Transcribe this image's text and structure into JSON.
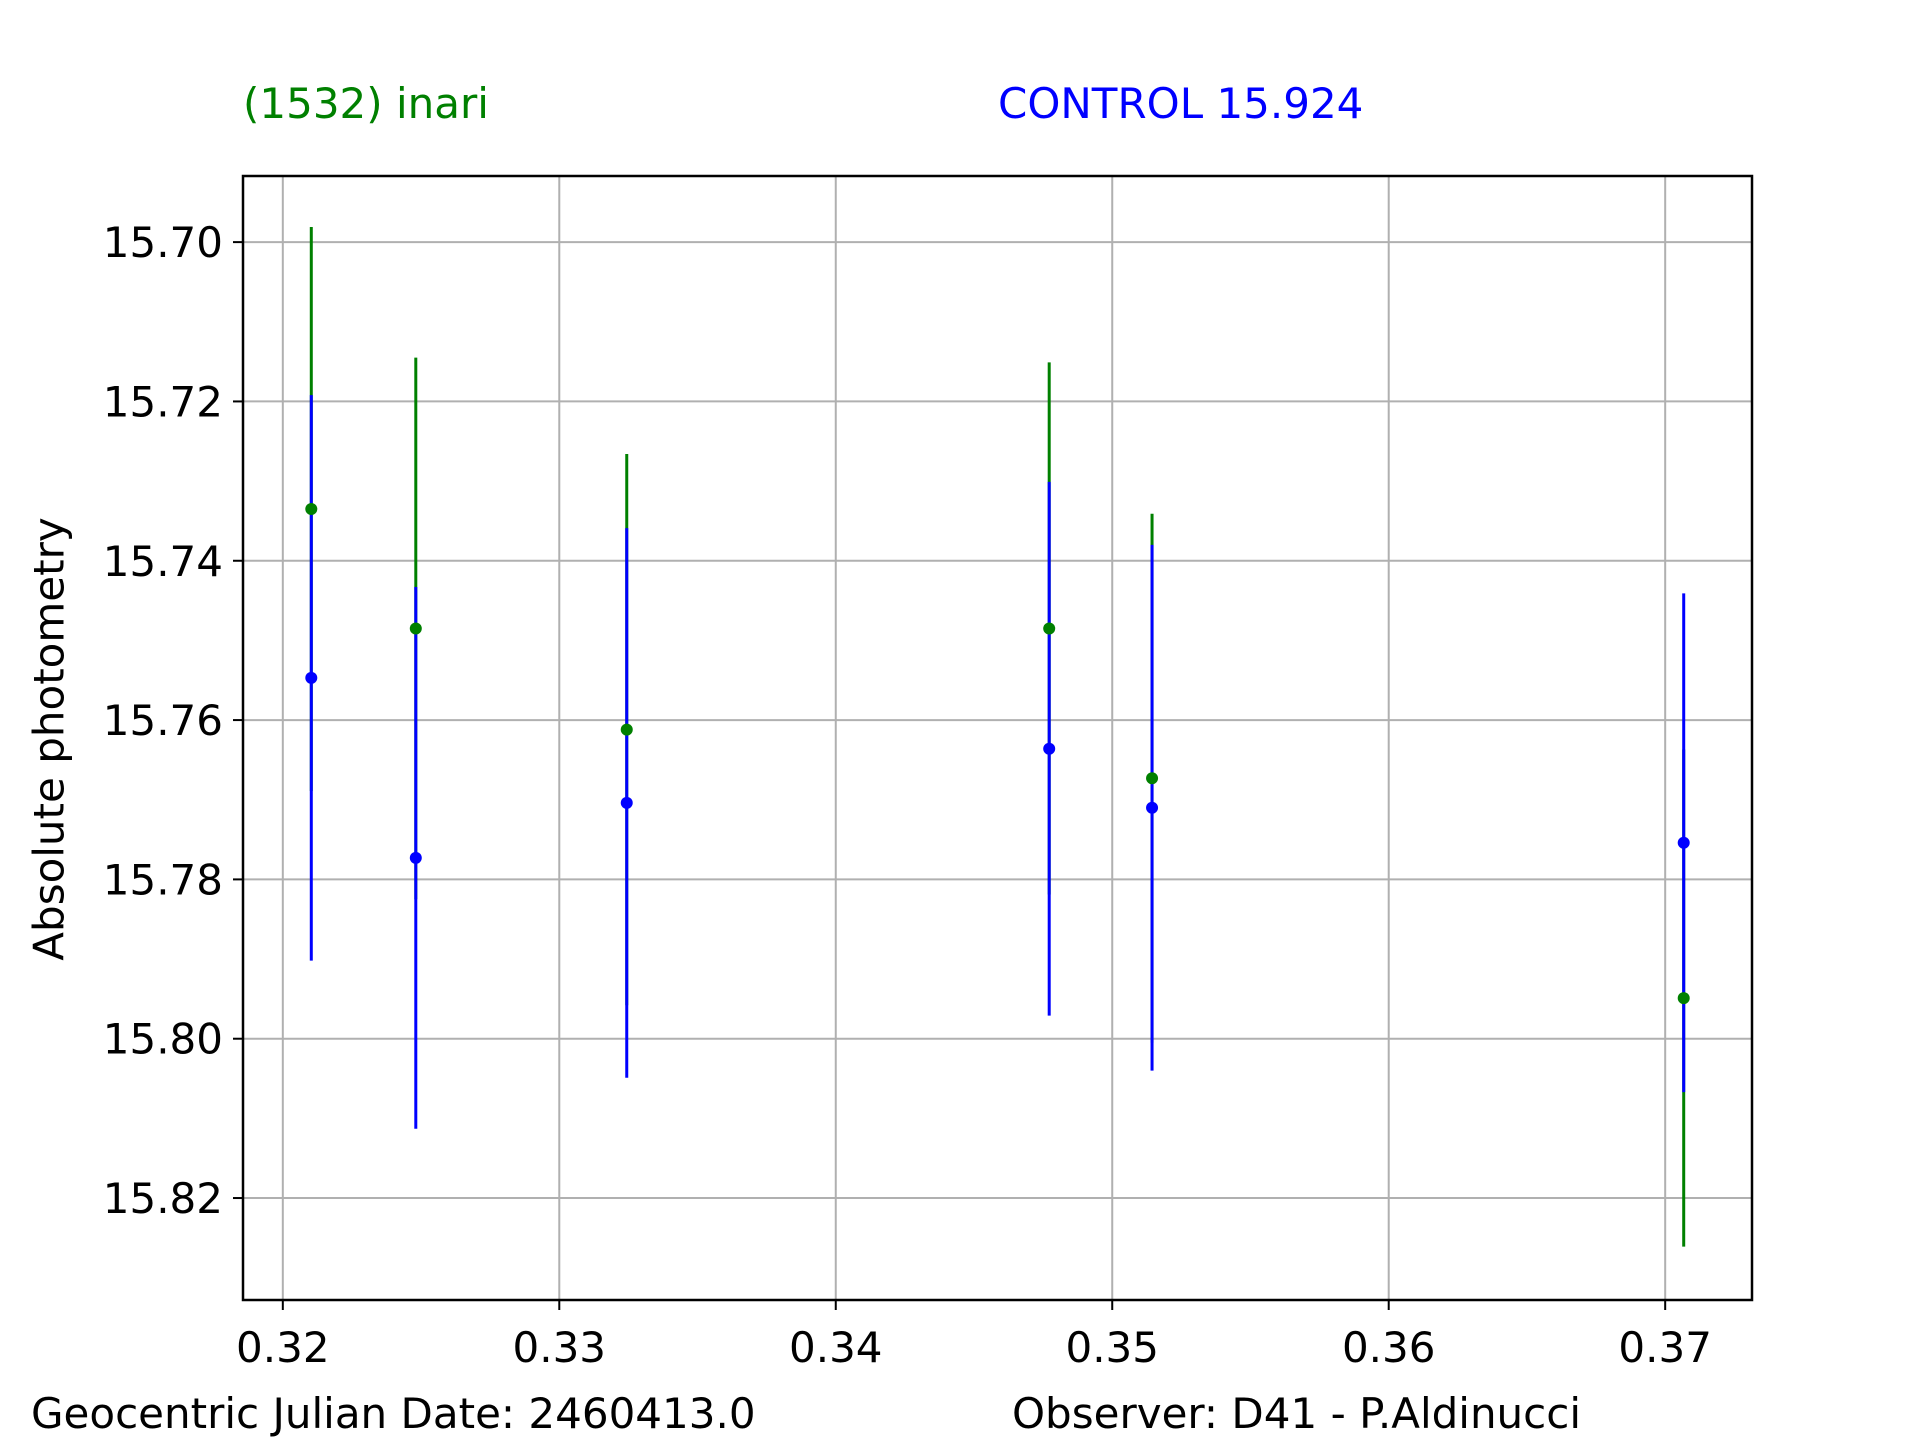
{
  "chart_data": {
    "type": "errorbar",
    "ylabel": "Absolute photometry",
    "footer_left": "Geocentric Julian Date: 2460413.0",
    "footer_right": "Observer: D41 - P.Aldinucci",
    "x": [
      0.32103,
      0.32481,
      0.33244,
      0.34772,
      0.35144,
      0.37067
    ],
    "series": [
      {
        "name": "(1532) inari",
        "color": "#008000",
        "values": [
          15.7335,
          15.7485,
          15.7612,
          15.7485,
          15.7673,
          15.7949
        ],
        "errors": [
          0.0354,
          0.034,
          0.0346,
          0.0334,
          0.0332,
          0.0312
        ]
      },
      {
        "name": "CONTROL 15.924",
        "color": "#0000ff",
        "values": [
          15.7547,
          15.7773,
          15.7704,
          15.7636,
          15.771,
          15.7754
        ],
        "errors": [
          0.0355,
          0.034,
          0.0345,
          0.0335,
          0.033,
          0.0313
        ]
      }
    ],
    "xlim": [
      0.31856,
      0.37314
    ],
    "xticks": [
      0.32,
      0.33,
      0.34,
      0.35,
      0.36,
      0.37
    ],
    "ylim": [
      15.8328,
      15.6917
    ],
    "yticks": [
      {
        "value": 15.7,
        "label": "15.70"
      },
      15.72,
      15.74,
      15.76,
      15.78,
      {
        "value": 15.8,
        "label": "15.80"
      },
      15.82
    ],
    "y_inverted": true,
    "grid": true
  }
}
